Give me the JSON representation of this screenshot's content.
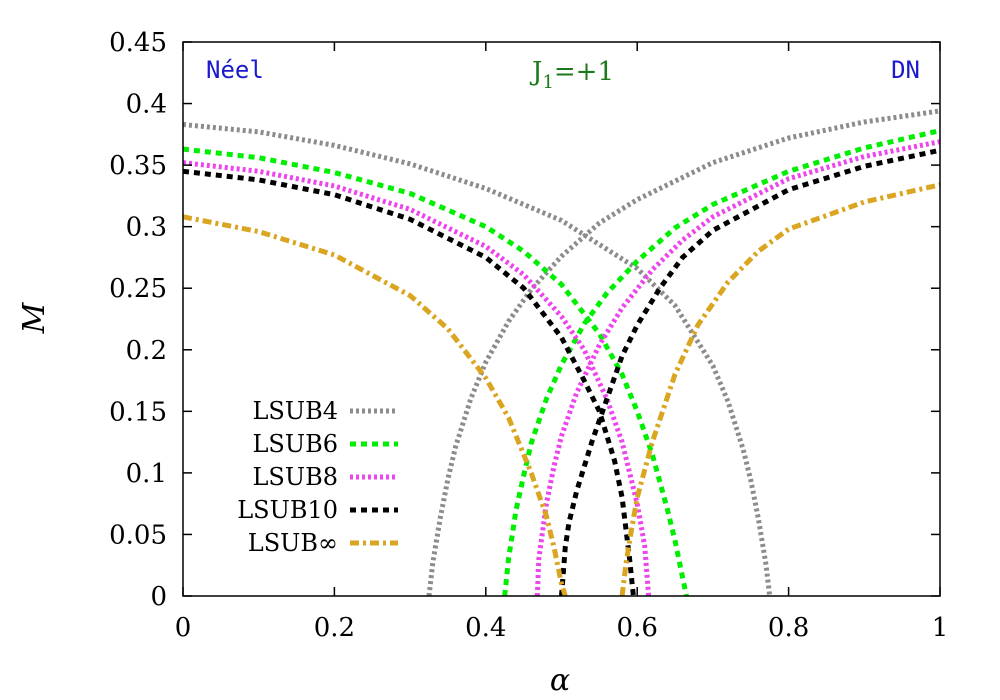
{
  "chart_data": {
    "type": "line",
    "xlabel": "α",
    "ylabel": "M",
    "xlim": [
      0,
      1
    ],
    "ylim": [
      0,
      0.45
    ],
    "x_ticks": [
      "0",
      "0.2",
      "0.4",
      "0.6",
      "0.8",
      "1"
    ],
    "y_ticks": [
      "0",
      "0.05",
      "0.1",
      "0.15",
      "0.2",
      "0.25",
      "0.3",
      "0.35",
      "0.4",
      "0.45"
    ],
    "grid": false,
    "legend_position": "bottom-left",
    "annotations": [
      {
        "text": "Néel",
        "color": "#1a1acc",
        "position": "top-left"
      },
      {
        "text": "J",
        "sub": "1",
        "suffix": "=+1",
        "color": "#1a7a1a",
        "position": "top-center"
      },
      {
        "text": "DN",
        "color": "#1a1acc",
        "position": "top-right"
      }
    ],
    "series": [
      {
        "name": "LSUB4",
        "color": "#8c8c8c",
        "dash": "dotted",
        "neel_x": [
          0,
          0.1,
          0.2,
          0.3,
          0.4,
          0.5,
          0.6,
          0.65,
          0.7,
          0.72,
          0.74,
          0.75,
          0.76,
          0.77,
          0.775
        ],
        "neel_y": [
          0.383,
          0.377,
          0.366,
          0.351,
          0.331,
          0.305,
          0.266,
          0.236,
          0.187,
          0.158,
          0.119,
          0.094,
          0.063,
          0.026,
          0.0
        ],
        "dn_x": [
          0.325,
          0.33,
          0.34,
          0.35,
          0.36,
          0.38,
          0.4,
          0.43,
          0.46,
          0.5,
          0.55,
          0.6,
          0.7,
          0.8,
          0.9,
          1.0
        ],
        "dn_y": [
          0.0,
          0.027,
          0.064,
          0.095,
          0.121,
          0.16,
          0.19,
          0.223,
          0.249,
          0.276,
          0.303,
          0.322,
          0.352,
          0.372,
          0.385,
          0.394
        ]
      },
      {
        "name": "LSUB6",
        "color": "#00ee00",
        "dash": "dashed",
        "neel_x": [
          0,
          0.1,
          0.2,
          0.3,
          0.4,
          0.45,
          0.5,
          0.55,
          0.58,
          0.6,
          0.62,
          0.64,
          0.65,
          0.66,
          0.665
        ],
        "neel_y": [
          0.363,
          0.356,
          0.344,
          0.327,
          0.3,
          0.28,
          0.253,
          0.213,
          0.18,
          0.15,
          0.115,
          0.07,
          0.045,
          0.015,
          0.0
        ],
        "dn_x": [
          0.425,
          0.43,
          0.44,
          0.45,
          0.46,
          0.48,
          0.5,
          0.53,
          0.56,
          0.6,
          0.65,
          0.7,
          0.8,
          0.9,
          1.0
        ],
        "dn_y": [
          0.0,
          0.03,
          0.07,
          0.098,
          0.124,
          0.16,
          0.188,
          0.221,
          0.246,
          0.272,
          0.299,
          0.318,
          0.345,
          0.364,
          0.378
        ]
      },
      {
        "name": "LSUB8",
        "color": "#ee44ee",
        "dash": "dotted",
        "neel_x": [
          0,
          0.1,
          0.2,
          0.3,
          0.4,
          0.45,
          0.5,
          0.53,
          0.56,
          0.58,
          0.6,
          0.61,
          0.615
        ],
        "neel_y": [
          0.352,
          0.345,
          0.333,
          0.314,
          0.284,
          0.261,
          0.227,
          0.2,
          0.16,
          0.125,
          0.075,
          0.04,
          0.0
        ],
        "dn_x": [
          0.468,
          0.47,
          0.48,
          0.49,
          0.5,
          0.52,
          0.55,
          0.58,
          0.62,
          0.66,
          0.7,
          0.8,
          0.9,
          1.0
        ],
        "dn_y": [
          0.0,
          0.03,
          0.075,
          0.105,
          0.13,
          0.165,
          0.204,
          0.234,
          0.265,
          0.289,
          0.308,
          0.339,
          0.357,
          0.369
        ]
      },
      {
        "name": "LSUB10",
        "color": "#000000",
        "dash": "dashed",
        "neel_x": [
          0,
          0.1,
          0.2,
          0.3,
          0.4,
          0.45,
          0.5,
          0.53,
          0.55,
          0.57,
          0.58,
          0.59,
          0.595
        ],
        "neel_y": [
          0.345,
          0.338,
          0.326,
          0.306,
          0.275,
          0.25,
          0.21,
          0.175,
          0.15,
          0.11,
          0.08,
          0.03,
          0.0
        ],
        "dn_x": [
          0.5,
          0.505,
          0.51,
          0.52,
          0.54,
          0.56,
          0.58,
          0.6,
          0.63,
          0.66,
          0.7,
          0.8,
          0.9,
          1.0
        ],
        "dn_y": [
          0.0,
          0.04,
          0.06,
          0.085,
          0.125,
          0.16,
          0.195,
          0.22,
          0.25,
          0.275,
          0.297,
          0.33,
          0.349,
          0.362
        ]
      },
      {
        "name": "LSUB∞",
        "color": "#daa520",
        "dash": "dashdot",
        "neel_x": [
          0,
          0.1,
          0.2,
          0.3,
          0.35,
          0.4,
          0.43,
          0.46,
          0.48,
          0.49,
          0.5,
          0.505
        ],
        "neel_y": [
          0.308,
          0.296,
          0.277,
          0.244,
          0.217,
          0.177,
          0.145,
          0.1,
          0.065,
          0.04,
          0.01,
          0.0
        ],
        "dn_x": [
          0.58,
          0.585,
          0.59,
          0.6,
          0.62,
          0.65,
          0.68,
          0.72,
          0.76,
          0.8,
          0.9,
          1.0
        ],
        "dn_y": [
          0.0,
          0.025,
          0.045,
          0.08,
          0.125,
          0.18,
          0.22,
          0.255,
          0.28,
          0.298,
          0.32,
          0.334
        ]
      }
    ]
  }
}
